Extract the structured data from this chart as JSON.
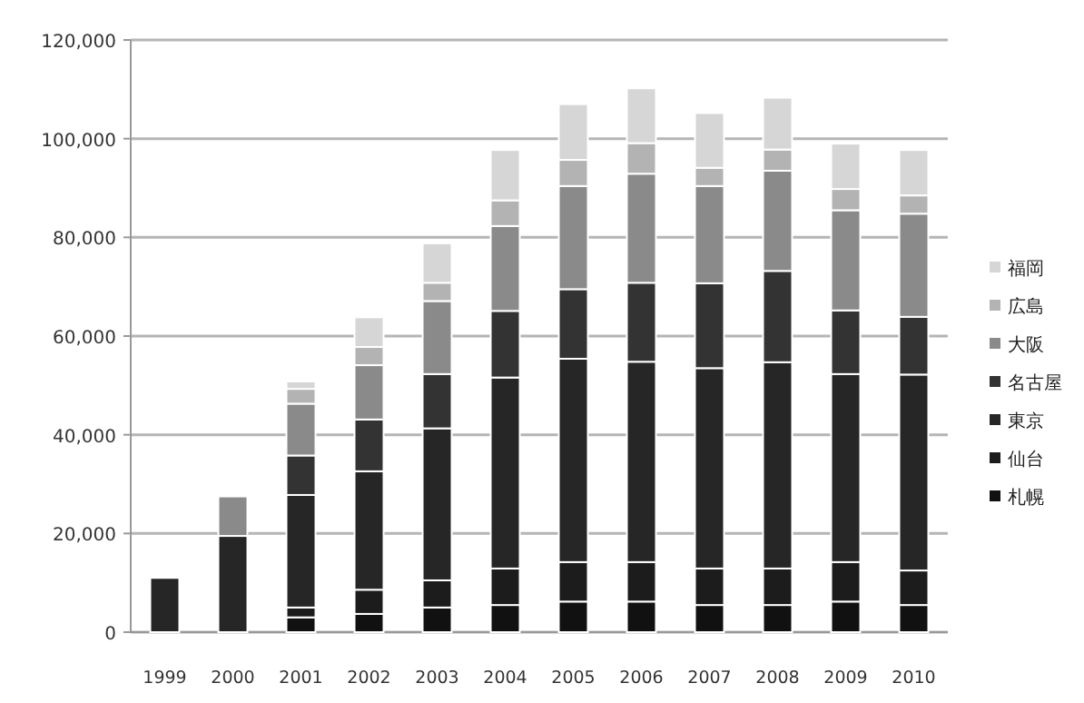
{
  "chart_data": {
    "type": "bar",
    "stacked": true,
    "grid": "y",
    "legend": "right",
    "categories": [
      "1999",
      "2000",
      "2001",
      "2002",
      "2003",
      "2004",
      "2005",
      "2006",
      "2007",
      "2008",
      "2009",
      "2010"
    ],
    "ylim": [
      0,
      120000
    ],
    "yticks": [
      {
        "value": 0,
        "label": "0"
      },
      {
        "value": 20000,
        "label": "20,000"
      },
      {
        "value": 40000,
        "label": "40,000"
      },
      {
        "value": 60000,
        "label": "60,000"
      },
      {
        "value": 80000,
        "label": "80,000"
      },
      {
        "value": 100000,
        "label": "100,000"
      },
      {
        "value": 120000,
        "label": "120,000"
      }
    ],
    "series": [
      {
        "name": "札幌",
        "color": "#111111",
        "values": [
          0,
          0,
          3000,
          3700,
          5000,
          5500,
          6200,
          6200,
          5500,
          5500,
          6200,
          5500
        ]
      },
      {
        "name": "仙台",
        "color": "#1c1c1c",
        "values": [
          0,
          0,
          2000,
          4900,
          5500,
          7400,
          8000,
          8000,
          7400,
          7400,
          8000,
          7000
        ]
      },
      {
        "name": "東京",
        "color": "#262626",
        "values": [
          11000,
          19500,
          22800,
          24000,
          30800,
          38700,
          41200,
          40600,
          40600,
          41800,
          38100,
          39700
        ]
      },
      {
        "name": "名古屋",
        "color": "#333333",
        "values": [
          0,
          0,
          8000,
          10500,
          11000,
          13500,
          14100,
          16000,
          17200,
          18500,
          12900,
          11700
        ]
      },
      {
        "name": "大阪",
        "color": "#8a8a8a",
        "values": [
          0,
          8000,
          10500,
          11000,
          14800,
          17200,
          20900,
          22100,
          19700,
          20300,
          20300,
          20900
        ]
      },
      {
        "name": "広島",
        "color": "#b3b3b3",
        "values": [
          0,
          0,
          3000,
          3700,
          3700,
          5200,
          5300,
          6200,
          3700,
          4300,
          4300,
          3700
        ]
      },
      {
        "name": "福岡",
        "color": "#d6d6d6",
        "values": [
          0,
          0,
          1500,
          6000,
          8000,
          10200,
          11300,
          11100,
          11100,
          10500,
          9200,
          9200
        ]
      }
    ]
  }
}
